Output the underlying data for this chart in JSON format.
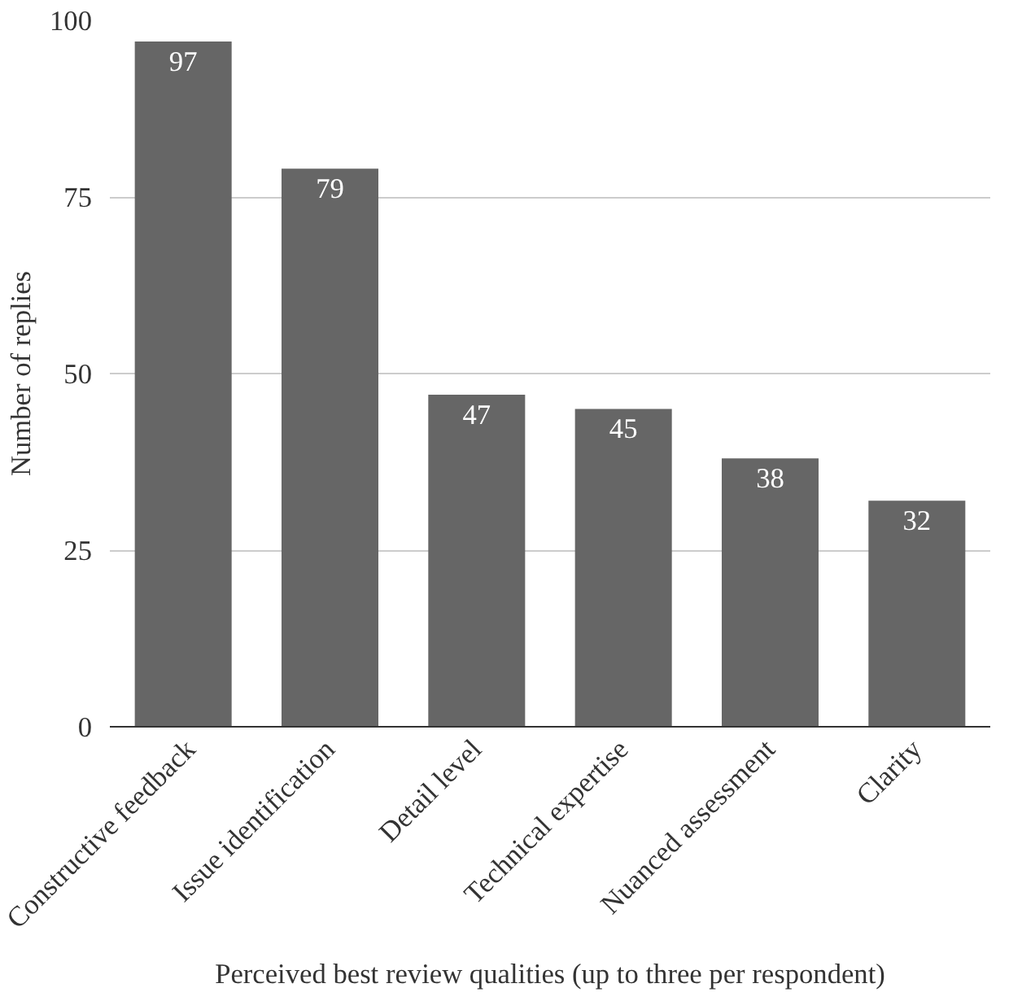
{
  "chart_data": {
    "type": "bar",
    "xlabel": "Perceived best review qualities (up to three per respondent)",
    "ylabel": "Number of replies",
    "categories": [
      "Constructive feedback",
      "Issue identification",
      "Detail level",
      "Technical expertise",
      "Nuanced assessment",
      "Clarity"
    ],
    "values": [
      97,
      79,
      47,
      45,
      38,
      32
    ],
    "color": "#666666",
    "ylim": [
      0,
      100
    ],
    "yticks": [
      0,
      25,
      50,
      75,
      100
    ],
    "grid": "y",
    "data_labels": true
  }
}
